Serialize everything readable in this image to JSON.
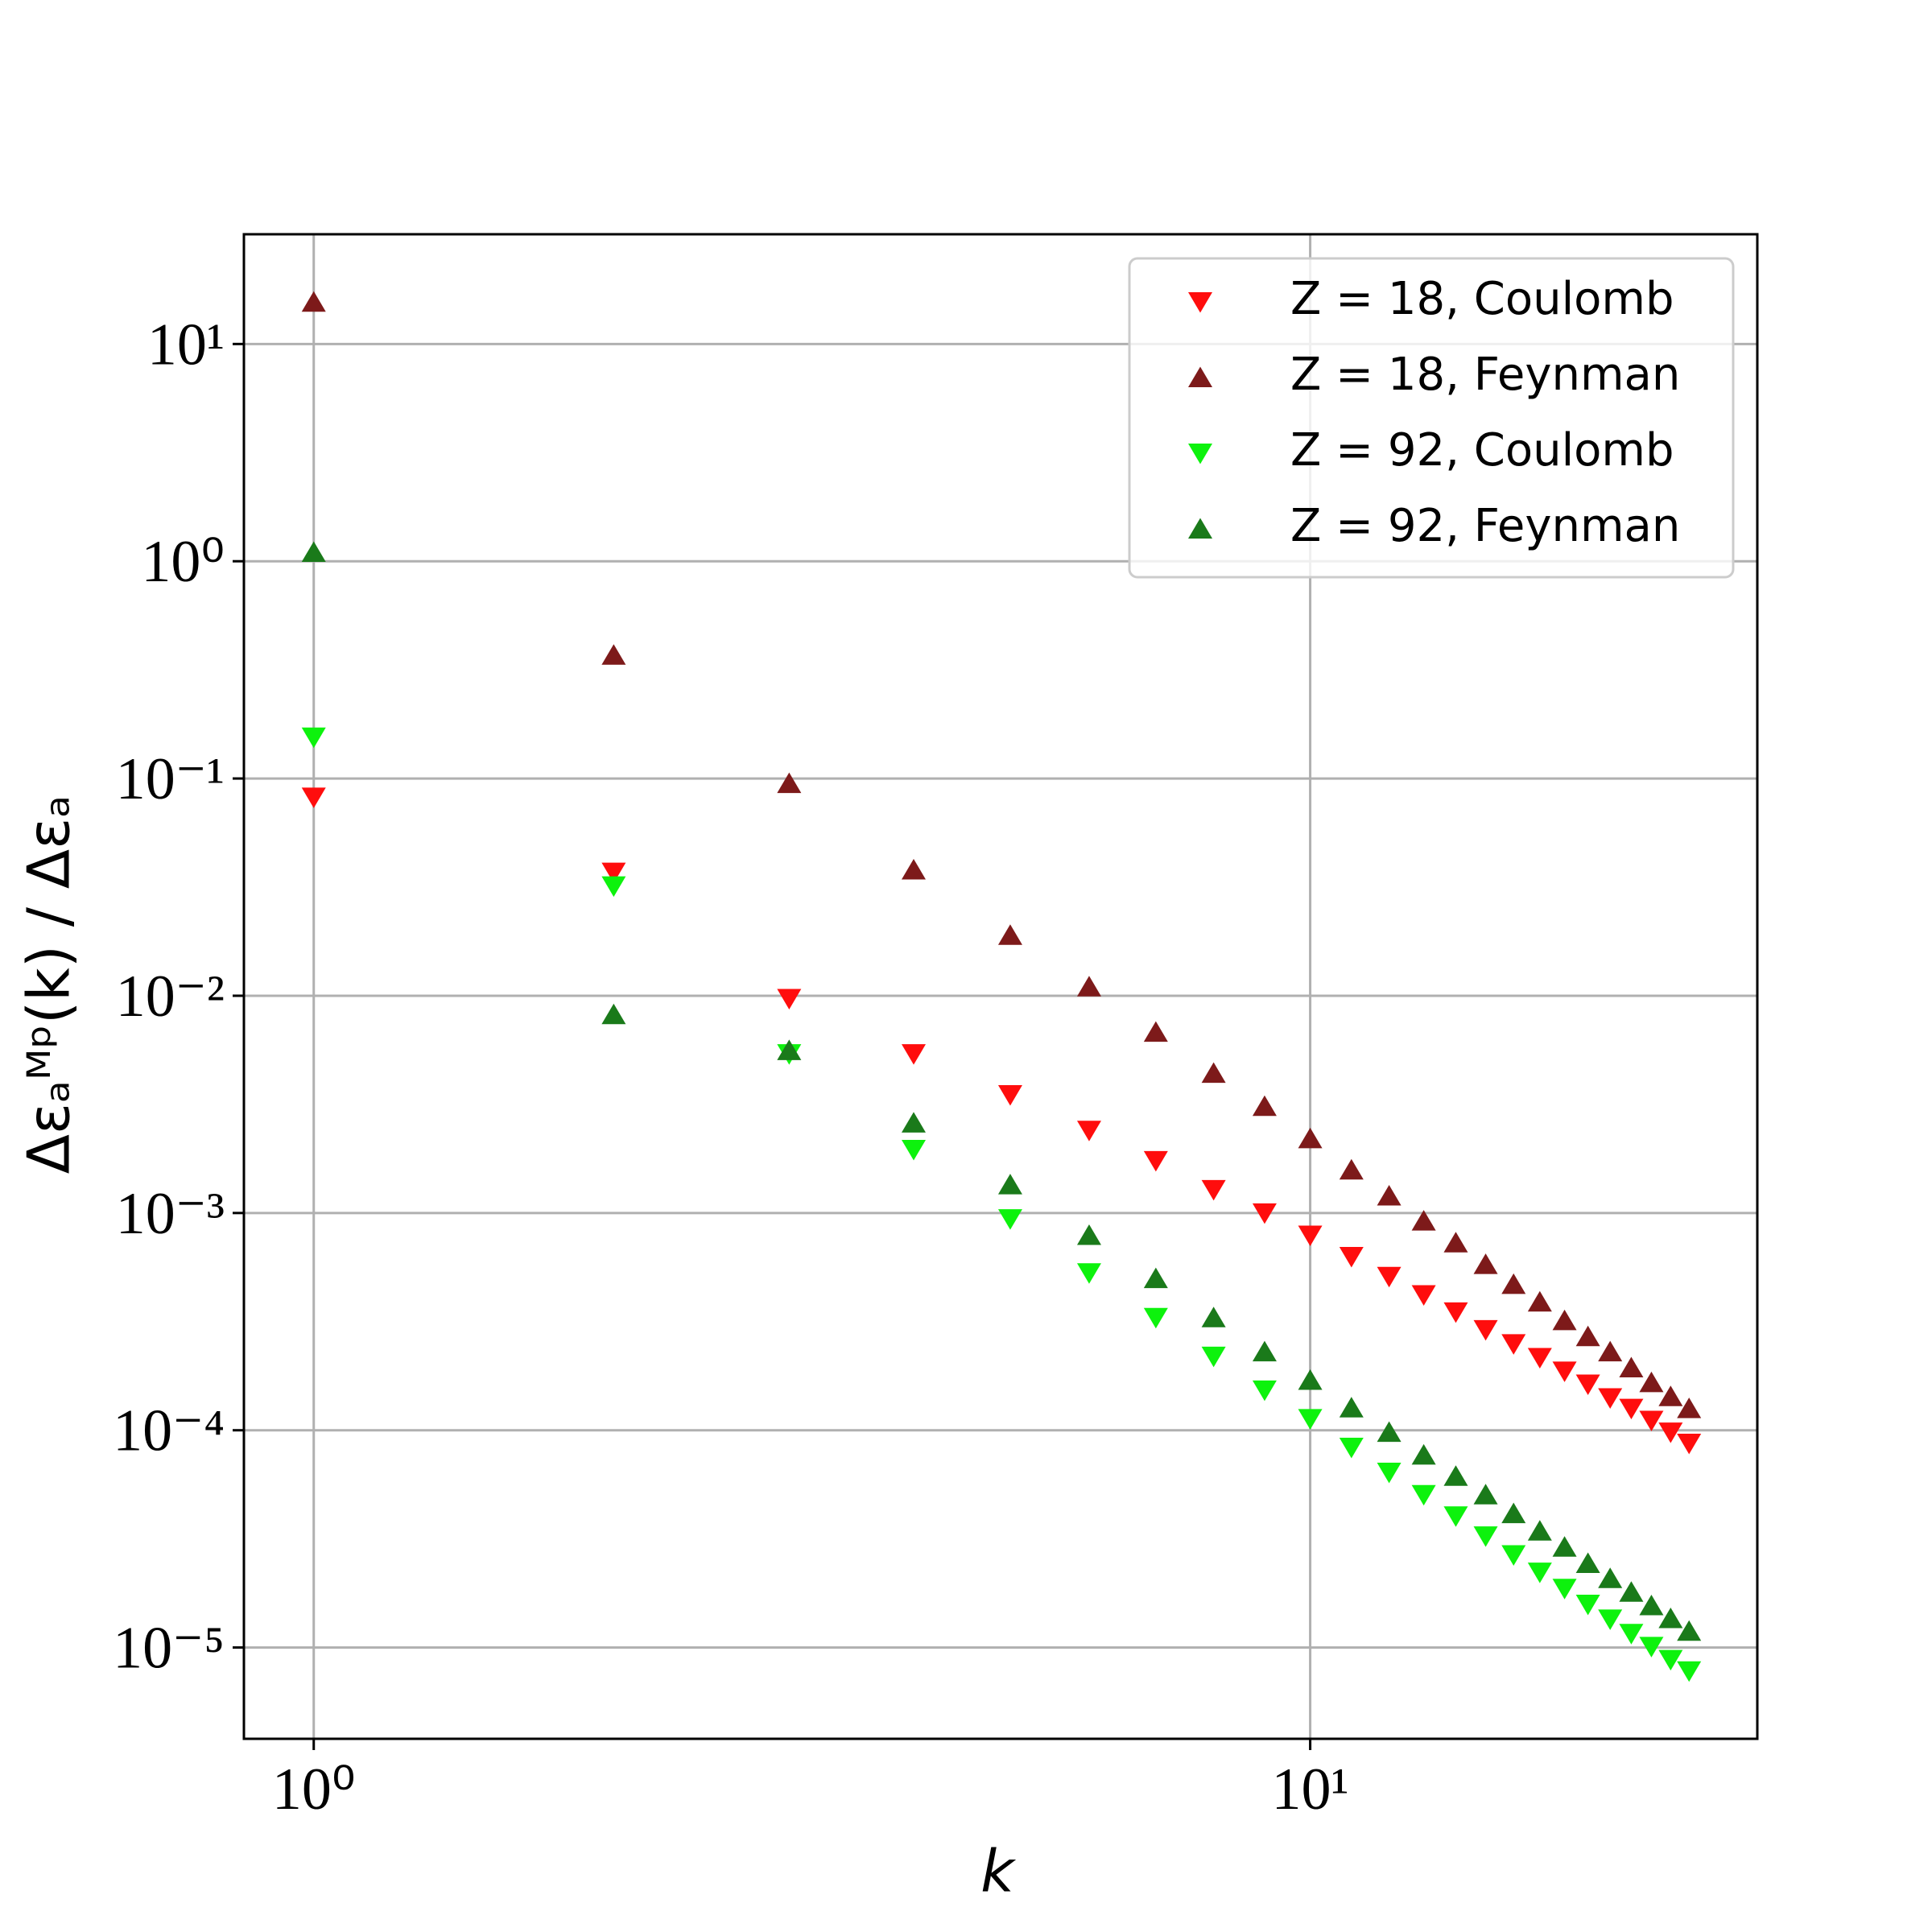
{
  "chart_data": {
    "type": "scatter",
    "xlabel": "k",
    "ylabel": "Δεₐᴹᵖ(k) / Δεₐ",
    "xscale": "log",
    "yscale": "log",
    "grid": true,
    "legend": "upper right",
    "xlim": [
      0.851,
      28.1
    ],
    "ylim": [
      3.8e-06,
      32
    ],
    "xticks": [
      {
        "value": 1,
        "label": "10⁰"
      },
      {
        "value": 10,
        "label": "10¹"
      }
    ],
    "yticks": [
      {
        "value": 1e-05,
        "label": "10⁻⁵"
      },
      {
        "value": 0.0001,
        "label": "10⁻⁴"
      },
      {
        "value": 0.001,
        "label": "10⁻³"
      },
      {
        "value": 0.01,
        "label": "10⁻²"
      },
      {
        "value": 0.1,
        "label": "10⁻¹"
      },
      {
        "value": 1,
        "label": "10⁰"
      },
      {
        "value": 10,
        "label": "10¹"
      }
    ],
    "x": [
      1,
      2,
      3,
      4,
      5,
      6,
      7,
      8,
      9,
      10,
      11,
      12,
      13,
      14,
      15,
      16,
      17,
      18,
      19,
      20,
      21,
      22,
      23,
      24
    ],
    "series": [
      {
        "name": "Z = 18, Coulomb",
        "color": "#ff0d0d",
        "marker": "down",
        "values": [
          0.082,
          0.037,
          0.0097,
          0.0054,
          0.0035,
          0.0024,
          0.00174,
          0.00128,
          0.001,
          0.00079,
          0.00063,
          0.00051,
          0.00042,
          0.00035,
          0.00029,
          0.00025,
          0.000216,
          0.000187,
          0.000163,
          0.000141,
          0.000126,
          0.000111,
          9.8e-05,
          8.7e-05
        ]
      },
      {
        "name": "Z = 18, Feynman",
        "color": "#7d1a1a",
        "marker": "up",
        "values": [
          15.6,
          0.37,
          0.095,
          0.038,
          0.019,
          0.011,
          0.0068,
          0.0044,
          0.0031,
          0.0022,
          0.00158,
          0.0012,
          0.00092,
          0.00073,
          0.00058,
          0.00047,
          0.00039,
          0.00032,
          0.00027,
          0.00023,
          0.000194,
          0.000166,
          0.000143,
          0.000126
        ]
      },
      {
        "name": "Z = 92, Coulomb",
        "color": "#0df20d",
        "marker": "down",
        "values": [
          0.155,
          0.032,
          0.0054,
          0.00196,
          0.00094,
          0.00053,
          0.00033,
          0.000219,
          0.000153,
          0.000113,
          8.34e-05,
          6.4e-05,
          5.05e-05,
          4.03e-05,
          3.26e-05,
          2.67e-05,
          2.22e-05,
          1.87e-05,
          1.58e-05,
          1.35e-05,
          1.16e-05,
          1.01e-05,
          8.8e-06,
          7.8e-06
        ]
      },
      {
        "name": "Z = 92, Feynman",
        "color": "#1a7a1a",
        "marker": "up",
        "values": [
          1.1,
          0.0082,
          0.0056,
          0.0026,
          0.00135,
          0.00079,
          0.0005,
          0.00033,
          0.00023,
          0.00017,
          0.000127,
          9.8e-05,
          7.7e-05,
          6.15e-05,
          5.05e-05,
          4.14e-05,
          3.44e-05,
          2.9e-05,
          2.44e-05,
          2.08e-05,
          1.8e-05,
          1.56e-05,
          1.36e-05,
          1.19e-05
        ]
      }
    ]
  }
}
